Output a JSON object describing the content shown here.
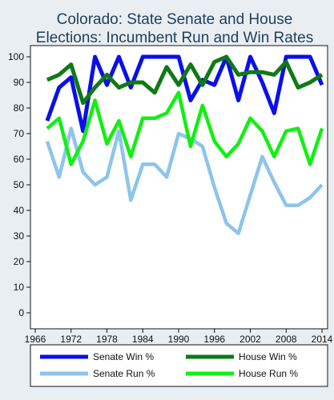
{
  "chart_data": {
    "type": "line",
    "title_lines": [
      "Colorado: State Senate and House",
      "Elections: Incumbent Run and Win Rates"
    ],
    "xlabel": "",
    "ylabel": "",
    "xlim": [
      1966,
      2014
    ],
    "ylim": [
      0,
      100
    ],
    "x_ticks": [
      1966,
      1972,
      1978,
      1984,
      1990,
      1996,
      2002,
      2008,
      2014
    ],
    "y_ticks": [
      0,
      10,
      20,
      30,
      40,
      50,
      60,
      70,
      80,
      90,
      100
    ],
    "grid": false,
    "legend_position": "bottom",
    "x": [
      1968,
      1970,
      1972,
      1974,
      1976,
      1978,
      1980,
      1982,
      1984,
      1986,
      1988,
      1990,
      1992,
      1994,
      1996,
      1998,
      2000,
      2002,
      2004,
      2006,
      2008,
      2010,
      2012,
      2014
    ],
    "series": [
      {
        "name": "Senate Win %",
        "color": "#0a10e8",
        "width": 5,
        "values": [
          75,
          88,
          92,
          71,
          100,
          89,
          100,
          88,
          100,
          100,
          100,
          100,
          83,
          91,
          89,
          100,
          83,
          100,
          90,
          78,
          100,
          100,
          100,
          89
        ]
      },
      {
        "name": "House Win %",
        "color": "#0f7a14",
        "width": 5,
        "values": [
          91,
          93,
          97,
          82,
          88,
          93,
          88,
          90,
          90,
          86,
          96,
          89,
          97,
          89,
          98,
          100,
          93,
          94,
          94,
          93,
          98,
          88,
          90,
          93
        ]
      },
      {
        "name": "Senate Run %",
        "color": "#8ec4ea",
        "width": 4.5,
        "values": [
          67,
          53,
          72,
          55,
          50,
          53,
          71,
          44,
          58,
          58,
          53,
          70,
          68,
          65,
          49,
          35,
          31,
          46,
          61,
          51,
          42,
          42,
          45,
          50
        ]
      },
      {
        "name": "House Run %",
        "color": "#11f011",
        "width": 4.5,
        "values": [
          72,
          76,
          58,
          67,
          83,
          66,
          75,
          61,
          76,
          76,
          78,
          86,
          65,
          81,
          67,
          61,
          66,
          76,
          71,
          61,
          71,
          72,
          58,
          72
        ]
      }
    ],
    "legend": [
      {
        "name": "Senate Win %",
        "color": "#0a10e8"
      },
      {
        "name": "House Win %",
        "color": "#0f7a14"
      },
      {
        "name": "Senate Run %",
        "color": "#8ec4ea"
      },
      {
        "name": "House Run %",
        "color": "#11f011"
      }
    ]
  }
}
